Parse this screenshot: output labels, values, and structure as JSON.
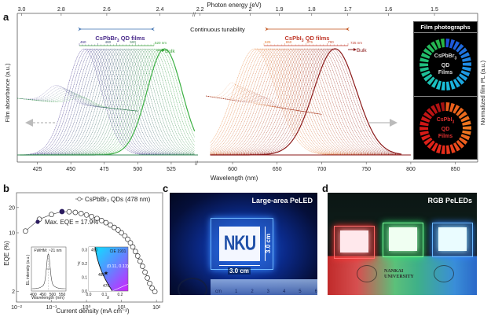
{
  "panels": {
    "a": {
      "letter": "a"
    },
    "b": {
      "letter": "b"
    },
    "c": {
      "letter": "c"
    },
    "d": {
      "letter": "d"
    }
  },
  "chart_data": [
    {
      "id": "panel-a",
      "type": "line",
      "title": "",
      "top_axis": {
        "label": "Photon energy (eV)",
        "ticks": [
          "3.0",
          "2.8",
          "2.6",
          "2.4",
          "2.2",
          "2",
          "1.9",
          "1.8",
          "1.7",
          "1.6",
          "1.5"
        ]
      },
      "xlabel": "Wavelength (nm)",
      "ylabel_left": "Film absorbance (a.u.)",
      "ylabel_right": "Normalized film PL (a.u.)",
      "x_ticks_left": [
        425,
        450,
        475,
        500,
        525
      ],
      "x_ticks_right": [
        600,
        650,
        700,
        750,
        800,
        850
      ],
      "xlim_left": [
        410,
        545
      ],
      "xlim_right": [
        570,
        875
      ],
      "annotation_center": "Continuous tunability",
      "groups": [
        {
          "name": "CsPbBr3 QD films",
          "name_main": "CsPbBr",
          "name_sub": "3",
          "name_rest": " QD films",
          "color": "#4b2c8c",
          "scale_ticks": [
            "460",
            "480",
            "500"
          ],
          "scale_end": "520 nm",
          "bulk_label": "Bulk",
          "bulk_color": "#3aa33a",
          "pl_peak_range_nm": [
            460,
            520
          ],
          "curve_count": 30,
          "color_start": "#3b2a8a",
          "color_end": "#3cb043"
        },
        {
          "name": "CsPbI3 QD films",
          "name_main": "CsPbI",
          "name_sub": "3",
          "name_rest": " QD films",
          "color": "#c0392b",
          "scale_ticks": [
            "625",
            "650",
            "675",
            "700"
          ],
          "scale_end": "725 nm",
          "bulk_label": "Bulk",
          "bulk_color": "#8b1a1a",
          "pl_peak_range_nm": [
            625,
            715
          ],
          "curve_count": 30,
          "color_start": "#e8833a",
          "color_end": "#8b1a1a"
        }
      ],
      "inset": {
        "title": "Film photographs",
        "rings": [
          {
            "line1": "CsPbBr",
            "sub": "3",
            "line2": "QD",
            "line3": "Films",
            "colors": [
              "#1e4fd8",
              "#1f8fe6",
              "#19c0d8",
              "#20c07a",
              "#2ab33a"
            ]
          },
          {
            "line1": "CsPbI",
            "sub": "3",
            "line2": "QD",
            "line3": "Films",
            "colors": [
              "#e85a1a",
              "#f07a20",
              "#e62a1a",
              "#d41818",
              "#a01010"
            ]
          }
        ]
      }
    },
    {
      "id": "panel-b",
      "type": "scatter",
      "xlabel": "Current density (mA cm⁻²)",
      "ylabel": "EQE (%)",
      "x_scale": "log",
      "y_scale": "log",
      "xlim": [
        0.01,
        150
      ],
      "ylim": [
        1.5,
        30
      ],
      "x_ticks": [
        "10⁻²",
        "10⁻¹",
        "10⁰",
        "10¹",
        "10²"
      ],
      "y_ticks": [
        "2",
        "10",
        "20"
      ],
      "legend": "CsPbBr₃ QDs (478 nm)",
      "legend_position": "top-right",
      "max_label": "Max. EQE = 17.9%",
      "series": [
        {
          "name": "CsPbBr3 QDs (478 nm)",
          "x": [
            0.018,
            0.045,
            0.1,
            0.2,
            0.32,
            0.48,
            0.7,
            1.0,
            1.4,
            2.0,
            2.7,
            3.6,
            4.8,
            6.2,
            8.0,
            10,
            12.5,
            15,
            18,
            21,
            25,
            29,
            34,
            40,
            47,
            55,
            64,
            75,
            90
          ],
          "y": [
            10.5,
            14.5,
            16.5,
            17.9,
            17.8,
            17.5,
            17.0,
            16.3,
            15.6,
            14.8,
            14.0,
            13.2,
            12.4,
            11.6,
            10.8,
            10.0,
            9.2,
            8.4,
            7.6,
            6.8,
            6.0,
            5.3,
            4.6,
            4.0,
            3.4,
            2.9,
            2.5,
            2.2,
            2.0
          ]
        }
      ],
      "max_point": {
        "x": 0.2,
        "y": 17.9
      },
      "insets": [
        {
          "type": "line",
          "title": "FWHM: ~21 nm",
          "xlabel": "Wavelength (nm)",
          "ylabel": "EL intensity (a.u.)",
          "x_ticks": [
            "400",
            "450",
            "500",
            "550"
          ],
          "peak_nm": 478,
          "fwhm_nm": 21
        },
        {
          "type": "scatter",
          "title": "CIE 1931",
          "xlabel": "x",
          "ylabel": "y",
          "x_ticks": [
            "0.0",
            "0.1",
            "0.2"
          ],
          "y_ticks": [
            "0.1",
            "0.2",
            "0.3"
          ],
          "locus_labels": [
            "490",
            "480",
            "470"
          ],
          "point_label": "(0.11, 0.13)",
          "point": {
            "x": 0.11,
            "y": 0.13
          }
        }
      ]
    }
  ],
  "photos": {
    "c": {
      "label": "Large-area PeLED",
      "logo_text": "NKU",
      "dim_horizontal": "3.0 cm",
      "dim_vertical": "3.0 cm",
      "ruler_marks": [
        "cm",
        "1",
        "2",
        "3",
        "4",
        "5",
        "6"
      ]
    },
    "d": {
      "label": "RGB PeLEDs",
      "background_text_1": "NANKAI",
      "background_text_2": "UNIVERSITY",
      "devices": [
        "red",
        "green",
        "blue"
      ]
    }
  }
}
